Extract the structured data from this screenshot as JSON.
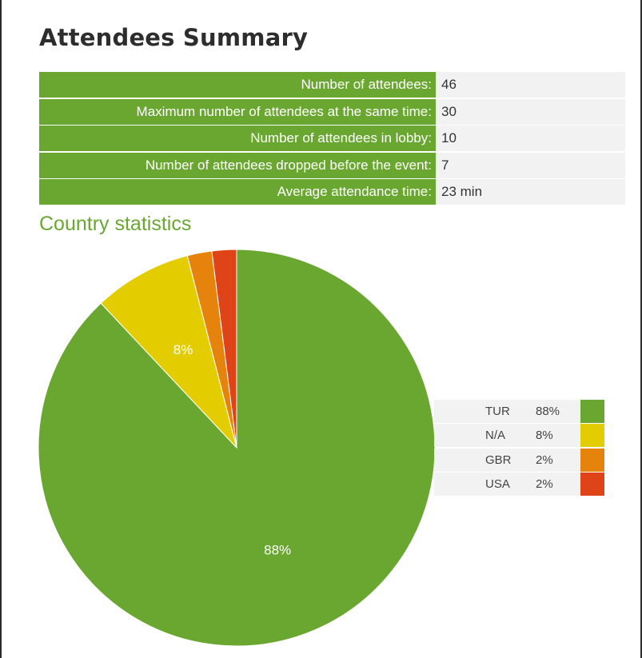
{
  "page": {
    "title": "Attendees Summary"
  },
  "summary": [
    {
      "label": "Number of attendees:",
      "value": "46"
    },
    {
      "label": "Maximum number of attendees at the same time:",
      "value": "30"
    },
    {
      "label": "Number of attendees in lobby:",
      "value": "10"
    },
    {
      "label": "Number of attendees dropped before the event:",
      "value": "7"
    },
    {
      "label": "Average attendance time:",
      "value": "23 min"
    }
  ],
  "country_section": {
    "title": "Country statistics"
  },
  "chart_data": {
    "type": "pie",
    "title": "",
    "start_angle": "12 o'clock, clockwise",
    "legend_position": "right",
    "slices": [
      {
        "label": "TUR",
        "value": 88,
        "display": "88%",
        "color": "#6aa730",
        "show_label": true
      },
      {
        "label": "N/A",
        "value": 8,
        "display": "8%",
        "color": "#e3cd00",
        "show_label": true
      },
      {
        "label": "GBR",
        "value": 2,
        "display": "2%",
        "color": "#e5830c",
        "show_label": false
      },
      {
        "label": "USA",
        "value": 2,
        "display": "2%",
        "color": "#de4418",
        "show_label": false
      }
    ]
  }
}
